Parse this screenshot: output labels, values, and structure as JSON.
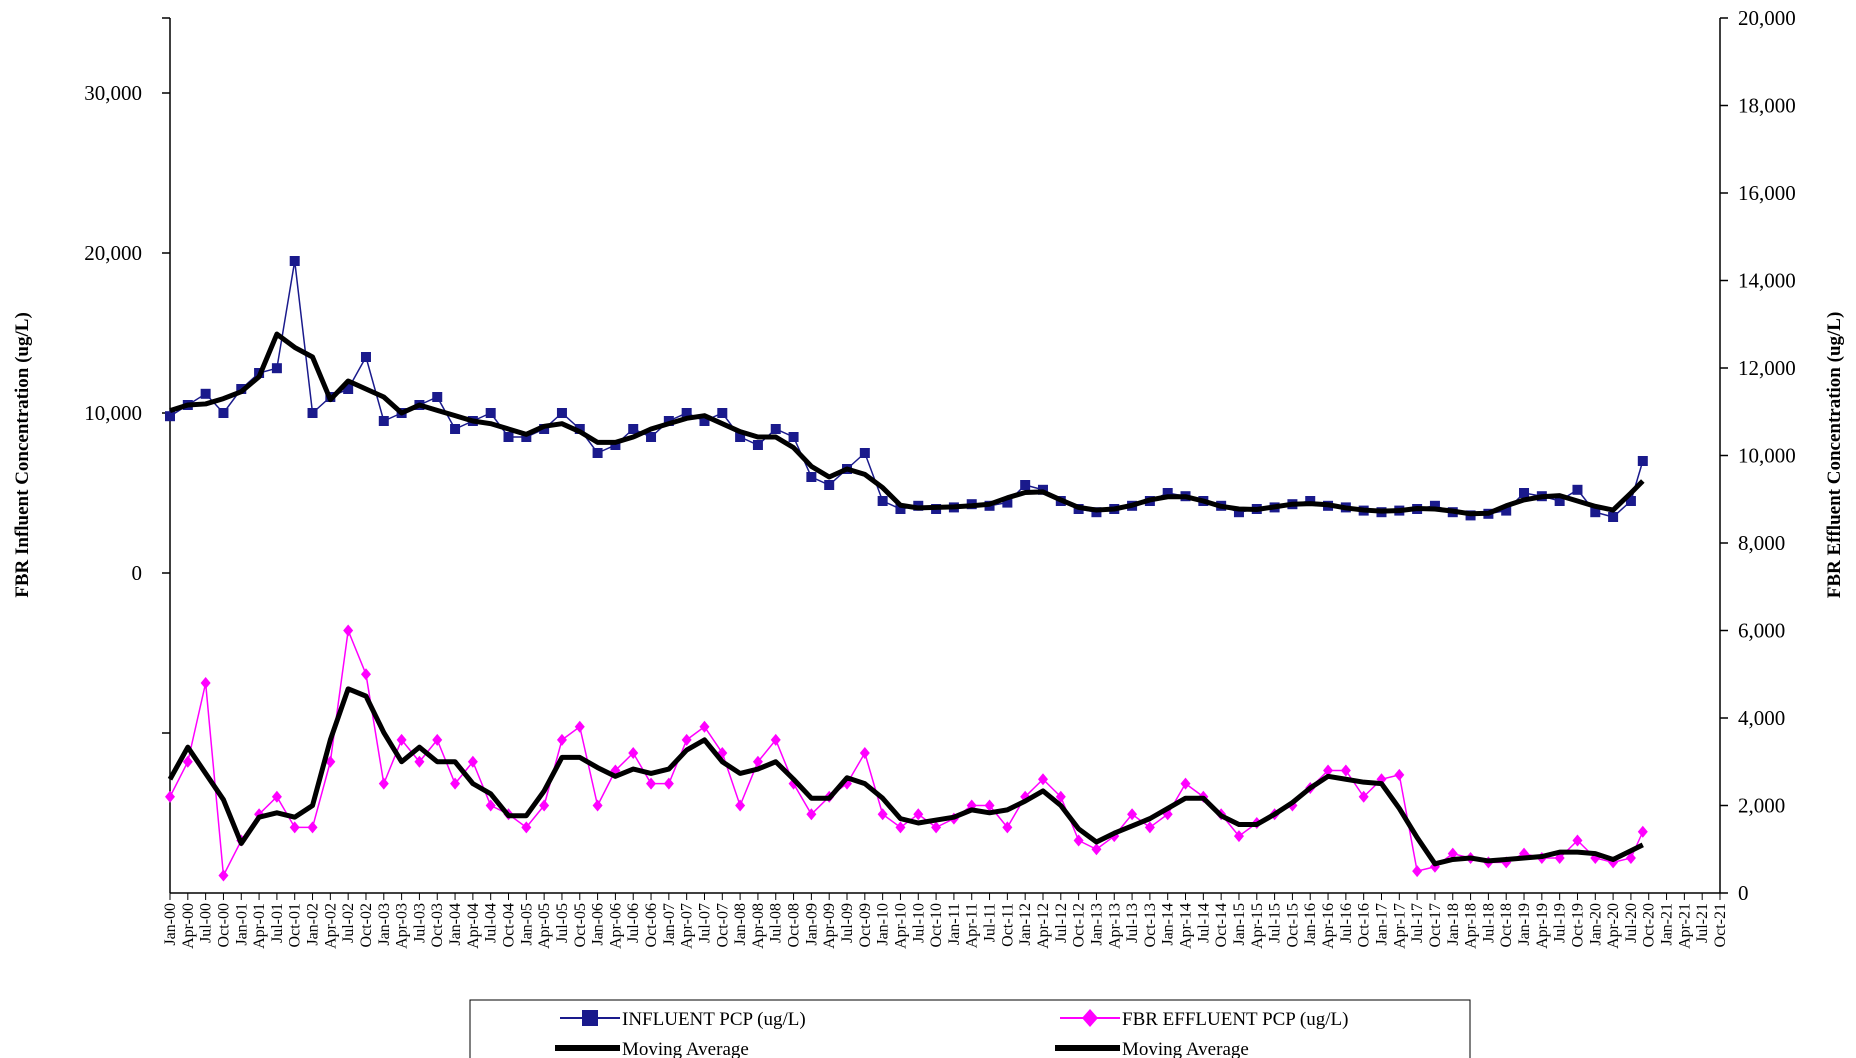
{
  "chart_data": {
    "type": "line",
    "title": "",
    "ylabel_left": "FBR Influent Concentration (ug/L)",
    "ylabel_right": "FBR Effluent Concentration (ug/L)",
    "y_left_ticks": [
      "0",
      "10,000",
      "20,000",
      "30,000"
    ],
    "y_left_tick_values": [
      0,
      10000,
      20000,
      30000
    ],
    "y_right_ticks": [
      "0",
      "2,000",
      "4,000",
      "6,000",
      "8,000",
      "10,000",
      "12,000",
      "14,000",
      "16,000",
      "18,000",
      "20,000"
    ],
    "y_right_tick_values": [
      0,
      2000,
      4000,
      6000,
      8000,
      10000,
      12000,
      14000,
      16000,
      18000,
      20000
    ],
    "y_right_lim": [
      0,
      20000
    ],
    "x_tick_labels": [
      "Jan-00",
      "Apr-00",
      "Jul-00",
      "Oct-00",
      "Jan-01",
      "Apr-01",
      "Jul-01",
      "Oct-01",
      "Jan-02",
      "Apr-02",
      "Jul-02",
      "Oct-02",
      "Jan-03",
      "Apr-03",
      "Jul-03",
      "Oct-03",
      "Jan-04",
      "Apr-04",
      "Jul-04",
      "Oct-04",
      "Jan-05",
      "Apr-05",
      "Jul-05",
      "Oct-05",
      "Jan-06",
      "Apr-06",
      "Jul-06",
      "Oct-06",
      "Jan-07",
      "Apr-07",
      "Jul-07",
      "Oct-07",
      "Jan-08",
      "Apr-08",
      "Jul-08",
      "Oct-08",
      "Jan-09",
      "Apr-09",
      "Jul-09",
      "Oct-09",
      "Jan-10",
      "Apr-10",
      "Jul-10",
      "Oct-10",
      "Jan-11",
      "Apr-11",
      "Jul-11",
      "Oct-11",
      "Jan-12",
      "Apr-12",
      "Jul-12",
      "Oct-12",
      "Jan-13",
      "Apr-13",
      "Jul-13",
      "Oct-13",
      "Jan-14",
      "Apr-14",
      "Jul-14",
      "Oct-14",
      "Jan-15",
      "Apr-15",
      "Jul-15",
      "Oct-15",
      "Jan-16",
      "Apr-16",
      "Jul-16",
      "Oct-16",
      "Jan-17",
      "Apr-17",
      "Jul-17",
      "Oct-17",
      "Jan-18",
      "Apr-18",
      "Jul-18",
      "Oct-18",
      "Jan-19",
      "Apr-19",
      "Jul-19",
      "Oct-19",
      "Jan-20",
      "Apr-20",
      "Jul-20",
      "Oct-20",
      "Jan-21",
      "Apr-21",
      "Jul-21",
      "Oct-21"
    ],
    "series": [
      {
        "name": "INFLUENT PCP (ug/L)",
        "axis": "left",
        "color": "#1a1a8c",
        "marker": "square",
        "x": [
          "2000-01",
          "2000-04",
          "2000-07",
          "2000-10",
          "2001-01",
          "2001-04",
          "2001-07",
          "2001-10",
          "2002-01",
          "2002-04",
          "2002-07",
          "2002-10",
          "2003-01",
          "2003-04",
          "2003-07",
          "2003-10",
          "2004-01",
          "2004-04",
          "2004-07",
          "2004-10",
          "2005-01",
          "2005-04",
          "2005-07",
          "2005-10",
          "2006-01",
          "2006-04",
          "2006-07",
          "2006-10",
          "2007-01",
          "2007-04",
          "2007-07",
          "2007-10",
          "2008-01",
          "2008-04",
          "2008-07",
          "2008-10",
          "2009-01",
          "2009-04",
          "2009-07",
          "2009-10",
          "2010-01",
          "2010-04",
          "2010-07",
          "2010-10",
          "2011-01",
          "2011-04",
          "2011-07",
          "2011-10",
          "2012-01",
          "2012-04",
          "2012-07",
          "2012-10",
          "2013-01",
          "2013-04",
          "2013-07",
          "2013-10",
          "2014-01",
          "2014-04",
          "2014-07",
          "2014-10",
          "2015-01",
          "2015-04",
          "2015-07",
          "2015-10",
          "2016-01",
          "2016-04",
          "2016-07",
          "2016-10",
          "2017-01",
          "2017-04",
          "2017-07",
          "2017-10",
          "2018-01",
          "2018-04",
          "2018-07",
          "2018-10",
          "2019-01",
          "2019-04",
          "2019-07",
          "2019-10",
          "2020-01",
          "2020-04",
          "2020-07",
          "2020-09"
        ],
        "values": [
          9800,
          10500,
          11200,
          10000,
          11500,
          12500,
          12800,
          19500,
          10000,
          11000,
          11500,
          13500,
          9500,
          10000,
          10500,
          11000,
          9000,
          9500,
          10000,
          8500,
          8500,
          9000,
          10000,
          9000,
          7500,
          8000,
          9000,
          8500,
          9500,
          10000,
          9500,
          10000,
          8500,
          8000,
          9000,
          8500,
          6000,
          5500,
          6500,
          7500,
          4500,
          4000,
          4200,
          4000,
          4100,
          4300,
          4200,
          4400,
          5500,
          5200,
          4500,
          4000,
          3800,
          4000,
          4200,
          4500,
          5000,
          4800,
          4500,
          4200,
          3800,
          4000,
          4100,
          4300,
          4500,
          4200,
          4100,
          3900,
          3800,
          3900,
          4000,
          4200,
          3800,
          3600,
          3700,
          3900,
          5000,
          4800,
          4500,
          5200,
          3800,
          3500,
          4500,
          7000
        ]
      },
      {
        "name": "FBR EFFLUENT PCP (ug/L)",
        "axis": "right",
        "color": "#ff00ff",
        "marker": "diamond",
        "x": [
          "2000-01",
          "2000-04",
          "2000-07",
          "2000-10",
          "2001-01",
          "2001-04",
          "2001-07",
          "2001-10",
          "2002-01",
          "2002-04",
          "2002-07",
          "2002-10",
          "2003-01",
          "2003-04",
          "2003-07",
          "2003-10",
          "2004-01",
          "2004-04",
          "2004-07",
          "2004-10",
          "2005-01",
          "2005-04",
          "2005-07",
          "2005-10",
          "2006-01",
          "2006-04",
          "2006-07",
          "2006-10",
          "2007-01",
          "2007-04",
          "2007-07",
          "2007-10",
          "2008-01",
          "2008-04",
          "2008-07",
          "2008-10",
          "2009-01",
          "2009-04",
          "2009-07",
          "2009-10",
          "2010-01",
          "2010-04",
          "2010-07",
          "2010-10",
          "2011-01",
          "2011-04",
          "2011-07",
          "2011-10",
          "2012-01",
          "2012-04",
          "2012-07",
          "2012-10",
          "2013-01",
          "2013-04",
          "2013-07",
          "2013-10",
          "2014-01",
          "2014-04",
          "2014-07",
          "2014-10",
          "2015-01",
          "2015-04",
          "2015-07",
          "2015-10",
          "2016-01",
          "2016-04",
          "2016-07",
          "2016-10",
          "2017-01",
          "2017-04",
          "2017-07",
          "2017-10",
          "2018-01",
          "2018-04",
          "2018-07",
          "2018-10",
          "2019-01",
          "2019-04",
          "2019-07",
          "2019-10",
          "2020-01",
          "2020-04",
          "2020-07",
          "2020-09"
        ],
        "values": [
          2200,
          3000,
          4800,
          400,
          1200,
          1800,
          2200,
          1500,
          1500,
          3000,
          6000,
          5000,
          2500,
          3500,
          3000,
          3500,
          2500,
          3000,
          2000,
          1800,
          1500,
          2000,
          3500,
          3800,
          2000,
          2800,
          3200,
          2500,
          2500,
          3500,
          3800,
          3200,
          2000,
          3000,
          3500,
          2500,
          1800,
          2200,
          2500,
          3200,
          1800,
          1500,
          1800,
          1500,
          1700,
          2000,
          2000,
          1500,
          2200,
          2600,
          2200,
          1200,
          1000,
          1300,
          1800,
          1500,
          1800,
          2500,
          2200,
          1800,
          1300,
          1600,
          1800,
          2000,
          2400,
          2800,
          2800,
          2200,
          2600,
          2700,
          500,
          600,
          900,
          800,
          700,
          700,
          900,
          800,
          800,
          1200,
          800,
          700,
          800,
          1400
        ]
      },
      {
        "name": "Moving Average",
        "axis": "left",
        "color": "#000000",
        "values_ref": 0
      },
      {
        "name": "Moving Average",
        "axis": "right",
        "color": "#000000",
        "values_ref": 1
      }
    ],
    "legend": {
      "position": "bottom",
      "entries": [
        "INFLUENT PCP (ug/L)",
        "FBR EFFLUENT PCP (ug/L)",
        "Moving Average",
        "Moving Average"
      ]
    }
  }
}
